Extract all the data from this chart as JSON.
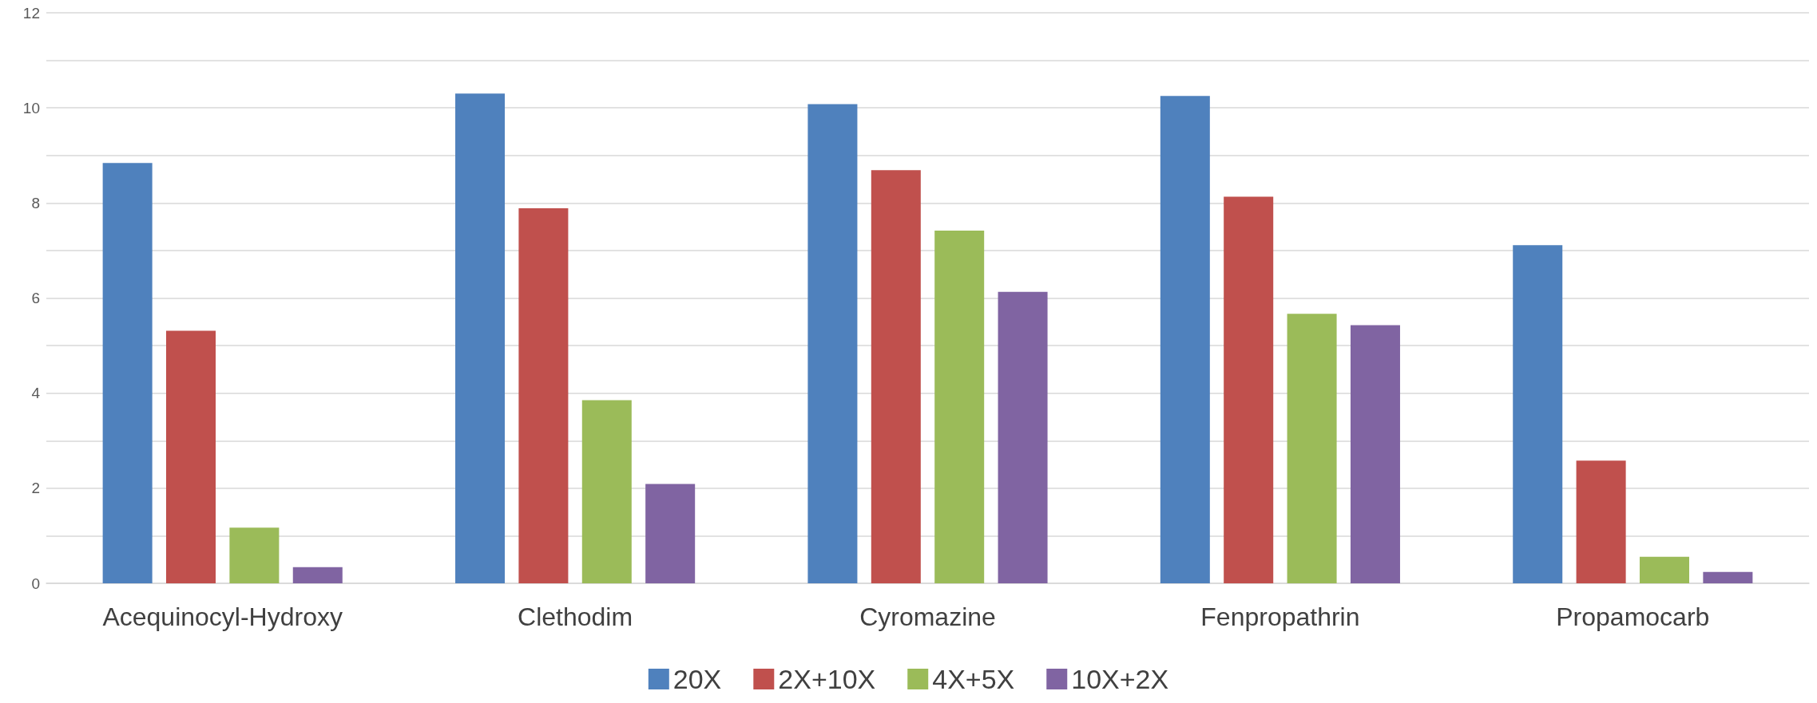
{
  "chart_data": {
    "type": "bar",
    "categories": [
      "Acequinocyl-Hydroxy",
      "Clethodim",
      "Cyromazine",
      "Fenpropathrin",
      "Propamocarb"
    ],
    "series": [
      {
        "name": "20X",
        "color": "#4f81bd",
        "values": [
          8.84,
          10.3,
          10.08,
          10.25,
          7.11
        ]
      },
      {
        "name": "2X+10X",
        "color": "#c0504d",
        "values": [
          5.31,
          7.89,
          8.69,
          8.13,
          2.58
        ]
      },
      {
        "name": "4X+5X",
        "color": "#9bbb59",
        "values": [
          1.17,
          3.85,
          7.42,
          5.67,
          0.56
        ]
      },
      {
        "name": "10X+2X",
        "color": "#8064a2",
        "values": [
          0.34,
          2.09,
          6.13,
          5.43,
          0.24
        ]
      }
    ],
    "ylim": [
      0,
      12
    ],
    "yticks": [
      0,
      {
        "value": 1,
        "label": null
      },
      2,
      {
        "value": 3,
        "label": null
      },
      4,
      {
        "value": 5,
        "label": null
      },
      6,
      {
        "value": 7,
        "label": null
      },
      8,
      {
        "value": 9,
        "label": null
      },
      10,
      {
        "value": 11,
        "label": null
      },
      12
    ],
    "grid": true,
    "legend": "bottom"
  }
}
